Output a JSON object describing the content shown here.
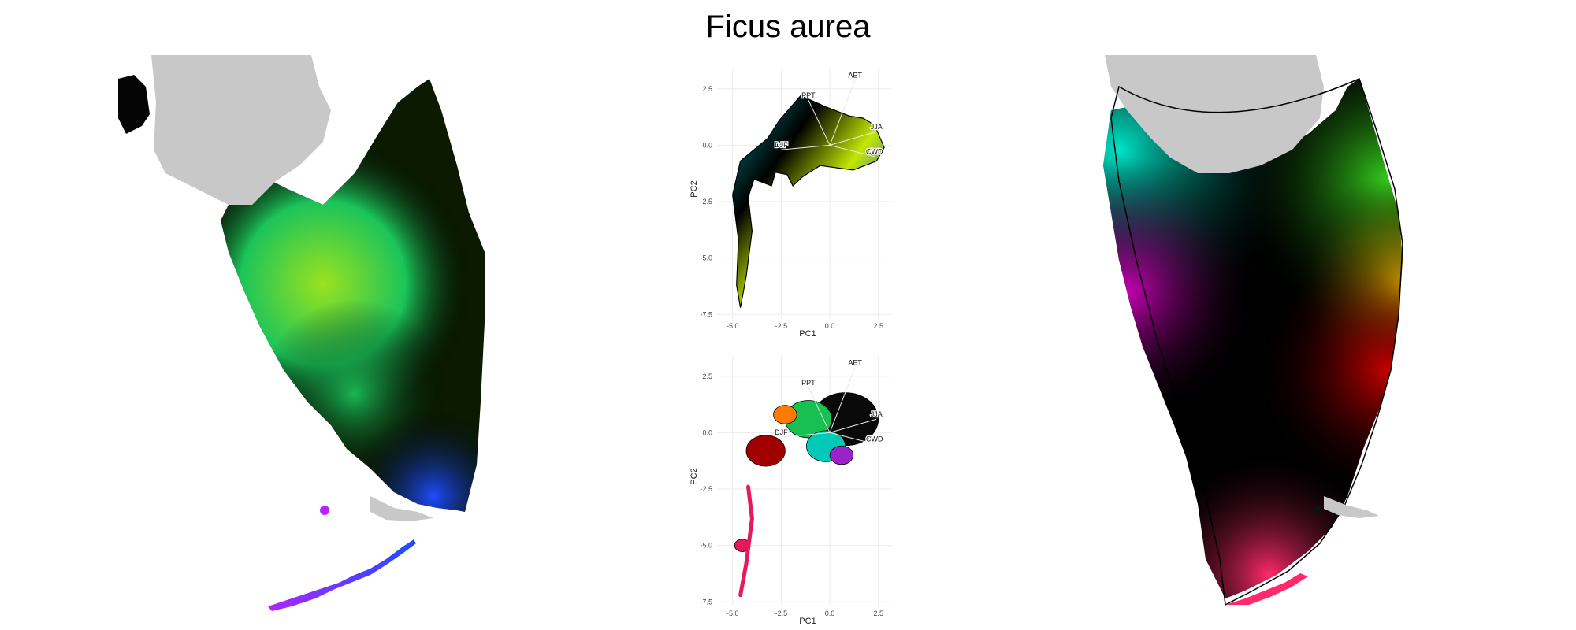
{
  "page": {
    "title": "Ficus aurea"
  },
  "colors": {
    "background": "#ffffff",
    "land_masked": "#c8c8c8",
    "grid": "#ebebeb",
    "arrow": "#e8e8e8",
    "yellow_green": "#b7e000",
    "green": "#33cc33",
    "cyan": "#00d5c0",
    "blue": "#1c3fff",
    "purple": "#8a1cff",
    "magenta": "#ff1e90",
    "red": "#d60000",
    "orange": "#ff8a00"
  },
  "chart_data": [
    {
      "type": "map",
      "panel": "left",
      "regions": [
        "masked-north",
        "florida-peninsula",
        "florida-keys"
      ],
      "gradient_stops": [
        {
          "label": "north",
          "color": "#0b1a00"
        },
        {
          "label": "center",
          "color": "#9be21f"
        },
        {
          "label": "east",
          "color": "#1bc45a"
        },
        {
          "label": "south",
          "color": "#0a0a0a"
        },
        {
          "label": "southeast",
          "color": "#1d4cff"
        },
        {
          "label": "keys",
          "color": "#b125ff"
        }
      ]
    },
    {
      "type": "scatter",
      "panel": "pca-top",
      "title": "",
      "xlabel": "PC1",
      "ylabel": "PC2",
      "xlim": [
        -5.8,
        3.2
      ],
      "ylim": [
        -7.7,
        3.4
      ],
      "xticks": [
        -5.0,
        -2.5,
        0.0,
        2.5
      ],
      "xtick_labels": [
        "-5.0",
        "-2.5",
        "0.0",
        "2.5"
      ],
      "yticks": [
        2.5,
        0.0,
        -2.5,
        -5.0,
        -7.5
      ],
      "ytick_labels": [
        "2.5",
        "0.0",
        "-2.5",
        "-5.0",
        "-7.5"
      ],
      "grid": true,
      "hull": [
        [
          -1.5,
          2.2
        ],
        [
          -0.2,
          1.7
        ],
        [
          1.0,
          1.3
        ],
        [
          1.7,
          1.2
        ],
        [
          2.1,
          1.0
        ],
        [
          2.4,
          0.7
        ],
        [
          2.8,
          -0.1
        ],
        [
          2.4,
          -0.7
        ],
        [
          1.2,
          -1.1
        ],
        [
          -0.5,
          -0.9
        ],
        [
          -1.4,
          -1.4
        ],
        [
          -1.9,
          -1.8
        ],
        [
          -2.2,
          -1.3
        ],
        [
          -2.8,
          -1.2
        ],
        [
          -3.0,
          -1.8
        ],
        [
          -3.9,
          -1.5
        ],
        [
          -4.2,
          -2.3
        ],
        [
          -4.0,
          -3.8
        ],
        [
          -4.3,
          -5.8
        ],
        [
          -4.6,
          -7.2
        ],
        [
          -4.8,
          -6.2
        ],
        [
          -4.7,
          -4.2
        ],
        [
          -5.0,
          -2.2
        ],
        [
          -4.6,
          -0.7
        ],
        [
          -3.9,
          -0.2
        ],
        [
          -3.2,
          0.3
        ],
        [
          -2.6,
          1.1
        ]
      ],
      "fill_colors": [
        "#000000",
        "#c3e800",
        "#008a8a",
        "#1b3dff",
        "#7a1bd1"
      ],
      "loadings": [
        {
          "name": "PPT",
          "x": -1.1,
          "y": 2.0
        },
        {
          "name": "AET",
          "x": 1.3,
          "y": 2.9
        },
        {
          "name": "JJA",
          "x": 2.4,
          "y": 0.6
        },
        {
          "name": "CWD",
          "x": 2.3,
          "y": -0.5
        },
        {
          "name": "DJF",
          "x": -2.5,
          "y": -0.2
        }
      ]
    },
    {
      "type": "scatter",
      "panel": "pca-bottom",
      "title": "",
      "xlabel": "PC1",
      "ylabel": "PC2",
      "xlim": [
        -5.8,
        3.2
      ],
      "ylim": [
        -7.7,
        3.4
      ],
      "xticks": [
        -5.0,
        -2.5,
        0.0,
        2.5
      ],
      "xtick_labels": [
        "-5.0",
        "-2.5",
        "0.0",
        "2.5"
      ],
      "yticks": [
        2.5,
        0.0,
        -2.5,
        -5.0,
        -7.5
      ],
      "ytick_labels": [
        "2.5",
        "0.0",
        "-2.5",
        "-5.0",
        "-7.5"
      ],
      "grid": true,
      "clusters": [
        {
          "color": "#0a0a0a",
          "cx": 0.8,
          "cy": 0.6,
          "r": 1.7
        },
        {
          "color": "#17c050",
          "cx": -1.1,
          "cy": 0.6,
          "r": 1.2
        },
        {
          "color": "#ff7a00",
          "cx": -2.3,
          "cy": 0.8,
          "r": 0.6
        },
        {
          "color": "#a00000",
          "cx": -3.3,
          "cy": -0.8,
          "r": 1.0
        },
        {
          "color": "#00c9b8",
          "cx": -0.2,
          "cy": -0.6,
          "r": 1.0
        },
        {
          "color": "#9a22c8",
          "cx": 0.6,
          "cy": -1.0,
          "r": 0.6
        },
        {
          "color": "#e61a5a",
          "cx": -4.5,
          "cy": -5.0,
          "r": 0.4
        }
      ],
      "loadings": [
        {
          "name": "PPT",
          "x": -1.1,
          "y": 2.0
        },
        {
          "name": "AET",
          "x": 1.3,
          "y": 2.9
        },
        {
          "name": "JJA",
          "x": 2.4,
          "y": 0.6
        },
        {
          "name": "CWD",
          "x": 2.3,
          "y": -0.5
        },
        {
          "name": "DJF",
          "x": -2.5,
          "y": -0.2
        }
      ]
    },
    {
      "type": "map",
      "panel": "right",
      "regions": [
        "masked-north",
        "florida-peninsula",
        "florida-keys",
        "boundary-outline"
      ],
      "gradient_stops": [
        {
          "label": "northwest",
          "color": "#00e5c8"
        },
        {
          "label": "center",
          "color": "#000000"
        },
        {
          "label": "northeast",
          "color": "#35d01b"
        },
        {
          "label": "east",
          "color": "#ffd400"
        },
        {
          "label": "southeast",
          "color": "#c40000"
        },
        {
          "label": "west",
          "color": "#c800b4"
        },
        {
          "label": "keys",
          "color": "#ff2a6a"
        }
      ]
    }
  ]
}
